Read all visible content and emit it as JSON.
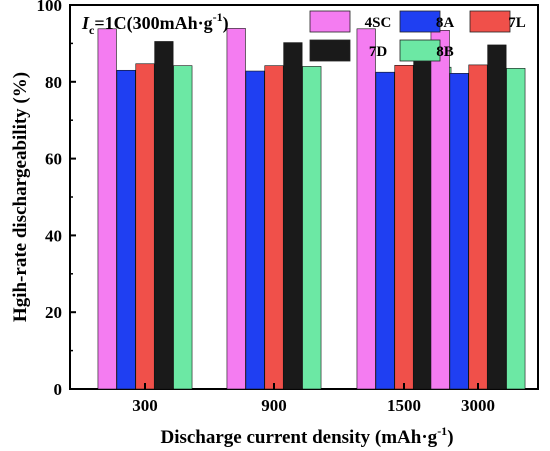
{
  "chart_data": {
    "type": "bar",
    "categories": [
      "300",
      "900",
      "1500",
      "3000"
    ],
    "series": [
      {
        "name": "4SC",
        "color": "#f47cf1",
        "values": [
          93.8,
          93.9,
          93.8,
          93.4
        ]
      },
      {
        "name": "8A",
        "color": "#1f3ff2",
        "values": [
          83.0,
          82.8,
          82.5,
          82.2
        ]
      },
      {
        "name": "7L",
        "color": "#f0504a",
        "values": [
          84.7,
          84.2,
          84.3,
          84.4
        ]
      },
      {
        "name": "7D",
        "color": "#1a1a1a",
        "values": [
          90.5,
          90.2,
          89.8,
          89.6
        ]
      },
      {
        "name": "8B",
        "color": "#6ce8a4",
        "values": [
          84.2,
          84.0,
          83.8,
          83.5
        ]
      }
    ],
    "xlabel": "Discharge current density (mAh·g",
    "xlabel_sup": "-1",
    "xlabel_end": ")",
    "ylabel": "Hgih-rate dischargeability (%)",
    "ylim": [
      0,
      100
    ],
    "yticks": [
      "0",
      "20",
      "40",
      "60",
      "80",
      "100"
    ],
    "annotation": {
      "italic": "I",
      "sub": "c",
      "text": "=1C(300mAh·g",
      "sup": "-1",
      "end": ")"
    },
    "legend_position": "top-right",
    "grid": false
  }
}
